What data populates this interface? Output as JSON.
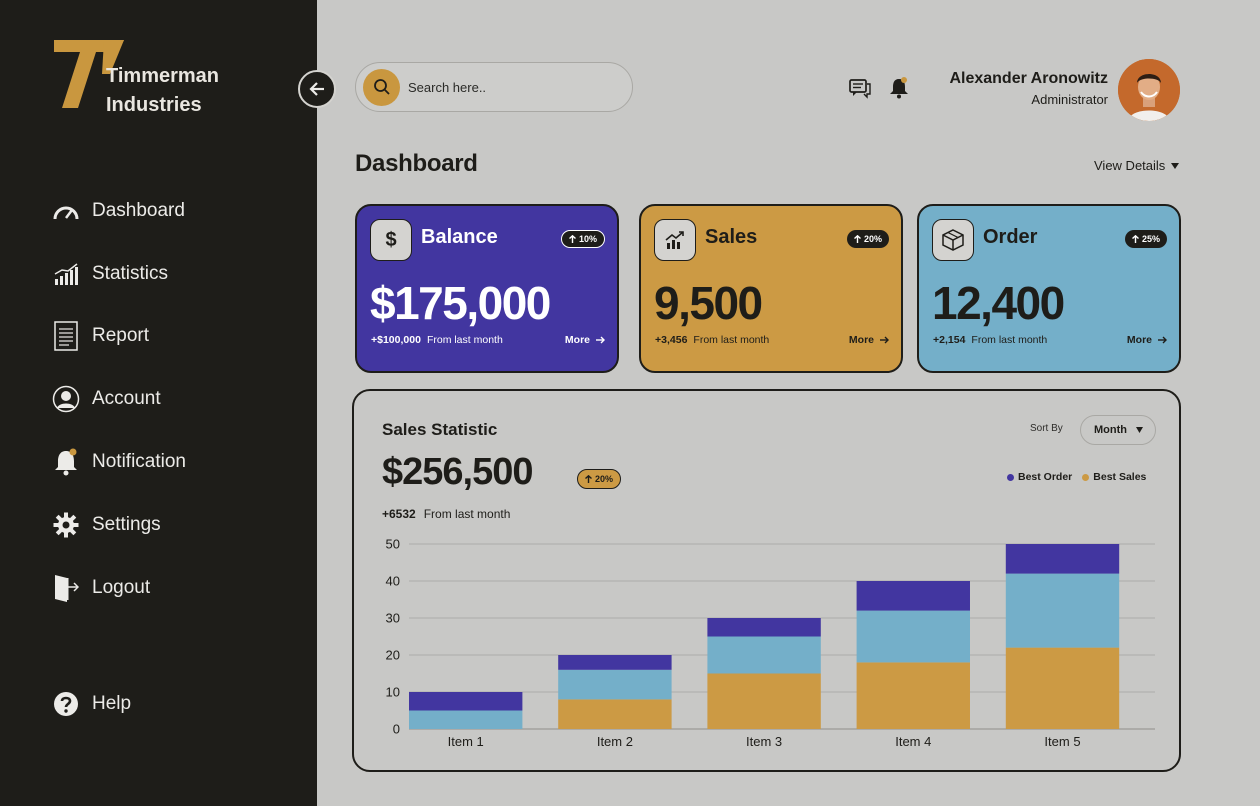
{
  "brand": {
    "line1": "Timmerman",
    "line2": "Industries"
  },
  "colors": {
    "sidebar": "#1e1d19",
    "purple": "#4236a0",
    "gold": "#cc9a44",
    "blue": "#74afc9",
    "bg": "#c8c8c6"
  },
  "sidebar": {
    "items": [
      {
        "label": "Dashboard",
        "icon": "gauge-icon"
      },
      {
        "label": "Statistics",
        "icon": "bar-chart-icon"
      },
      {
        "label": "Report",
        "icon": "document-icon"
      },
      {
        "label": "Account",
        "icon": "user-circle-icon"
      },
      {
        "label": "Notification",
        "icon": "bell-icon"
      },
      {
        "label": "Settings",
        "icon": "gear-icon"
      },
      {
        "label": "Logout",
        "icon": "door-exit-icon"
      }
    ],
    "help": {
      "label": "Help",
      "icon": "question-icon"
    }
  },
  "search": {
    "placeholder": "Search here..",
    "value": ""
  },
  "user": {
    "name": "Alexander Aronowitz",
    "role": "Administrator"
  },
  "page": {
    "title": "Dashboard",
    "view_details": "View Details"
  },
  "cards": [
    {
      "title": "Balance",
      "icon": "dollar-icon",
      "badge": "10%",
      "value": "$175,000",
      "delta": "+$100,000",
      "delta_text": "From last month",
      "more": "More"
    },
    {
      "title": "Sales",
      "icon": "trend-chart-icon",
      "badge": "20%",
      "value": "9,500",
      "delta": "+3,456",
      "delta_text": "From last month",
      "more": "More"
    },
    {
      "title": "Order",
      "icon": "box-icon",
      "badge": "25%",
      "value": "12,400",
      "delta": "+2,154",
      "delta_text": "From last month",
      "more": "More"
    }
  ],
  "stats": {
    "title": "Sales Statistic",
    "value": "$256,500",
    "badge": "20%",
    "delta": "+6532",
    "delta_text": "From last month",
    "sort_label": "Sort By",
    "sort_value": "Month",
    "legend": [
      "Best Order",
      "Best Sales"
    ]
  },
  "chart_data": {
    "type": "bar",
    "stacked": true,
    "categories": [
      "Item 1",
      "Item 2",
      "Item 3",
      "Item 4",
      "Item 5"
    ],
    "ylim": [
      0,
      50
    ],
    "yticks": [
      0,
      10,
      20,
      30,
      40,
      50
    ],
    "grid": true,
    "series": [
      {
        "values": [
          0,
          8,
          15,
          18,
          22
        ],
        "color": "#cc9a44"
      },
      {
        "values": [
          5,
          8,
          10,
          14,
          20
        ],
        "color": "#74afc9"
      },
      {
        "values": [
          5,
          4,
          5,
          8,
          8
        ],
        "color": "#4236a0"
      }
    ]
  }
}
